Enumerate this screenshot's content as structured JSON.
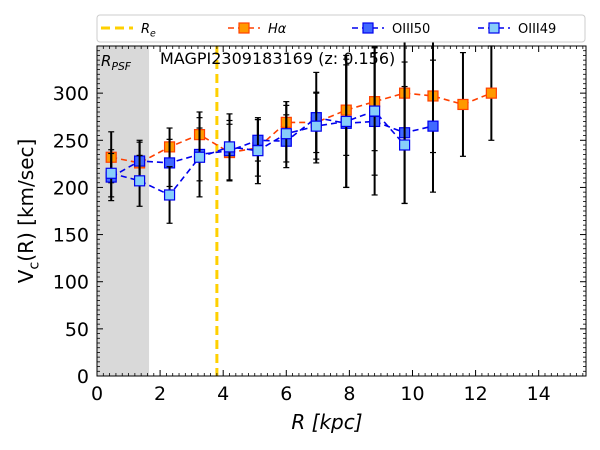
{
  "chart_data": {
    "type": "line",
    "title": "MAGPI2309183169 (z: 0.156)",
    "xlabel": "R [kpc]",
    "ylabel": "V_c(R) [km/sec]",
    "xlim": [
      0,
      15.5
    ],
    "ylim": [
      0,
      350
    ],
    "xticks": [
      0,
      2,
      4,
      6,
      8,
      10,
      12,
      14
    ],
    "yticks": [
      0,
      50,
      100,
      150,
      200,
      250,
      300
    ],
    "psf_region": {
      "x0": 0,
      "x1": 1.65,
      "label": "R_PSF",
      "color": "#d9d9d9"
    },
    "re_line": {
      "x": 3.8,
      "label": "R_e",
      "color": "#ffd000"
    },
    "legend": {
      "location": "top",
      "entries": [
        {
          "label": "R_e",
          "style": "dashed-line",
          "color": "#ffd000"
        },
        {
          "label": "Hα",
          "style": "marker",
          "line": "#ff4000",
          "fill": "#ff9900"
        },
        {
          "label": "OIII50",
          "style": "marker",
          "line": "#0000ee",
          "fill": "#4169ff"
        },
        {
          "label": "OIII49",
          "style": "marker",
          "line": "#0000ee",
          "fill": "#87cefa"
        }
      ]
    },
    "series": [
      {
        "name": "Hα",
        "line_color": "#ff4000",
        "marker_fill": "#ff9900",
        "marker_edge": "#ff4000",
        "x": [
          0.45,
          1.35,
          2.3,
          3.25,
          4.2,
          5.1,
          6.0,
          6.95,
          7.9,
          8.8,
          9.75,
          10.65,
          11.6,
          12.5
        ],
        "y": [
          232,
          226,
          243,
          256,
          237,
          242,
          269,
          269,
          282,
          291,
          300,
          297,
          288,
          300
        ],
        "err": [
          27,
          22,
          20,
          24,
          30,
          30,
          22,
          32,
          48,
          52,
          60,
          60,
          55,
          50
        ]
      },
      {
        "name": "OIII50",
        "line_color": "#0000ee",
        "marker_fill": "#4169ff",
        "marker_edge": "#0000ee",
        "x": [
          0.45,
          1.35,
          2.3,
          3.25,
          4.2,
          5.1,
          6.0,
          6.95,
          7.9,
          8.8,
          9.75,
          10.65
        ],
        "y": [
          211,
          228,
          226,
          235,
          239,
          250,
          249,
          274,
          268,
          270,
          258,
          265
        ],
        "err": [
          25,
          22,
          25,
          28,
          32,
          22,
          28,
          48,
          68,
          78,
          75,
          70
        ]
      },
      {
        "name": "OIII49",
        "line_color": "#0000ee",
        "marker_fill": "#87cefa",
        "marker_edge": "#0000ee",
        "x": [
          0.45,
          1.35,
          2.3,
          3.25,
          4.2,
          5.1,
          6.0,
          6.95,
          7.9,
          8.8,
          9.75
        ],
        "y": [
          215,
          207,
          192,
          232,
          243,
          239,
          257,
          265,
          270,
          281,
          245
        ],
        "err": [
          25,
          27,
          30,
          42,
          35,
          35,
          30,
          35,
          70,
          68,
          62
        ]
      }
    ]
  }
}
